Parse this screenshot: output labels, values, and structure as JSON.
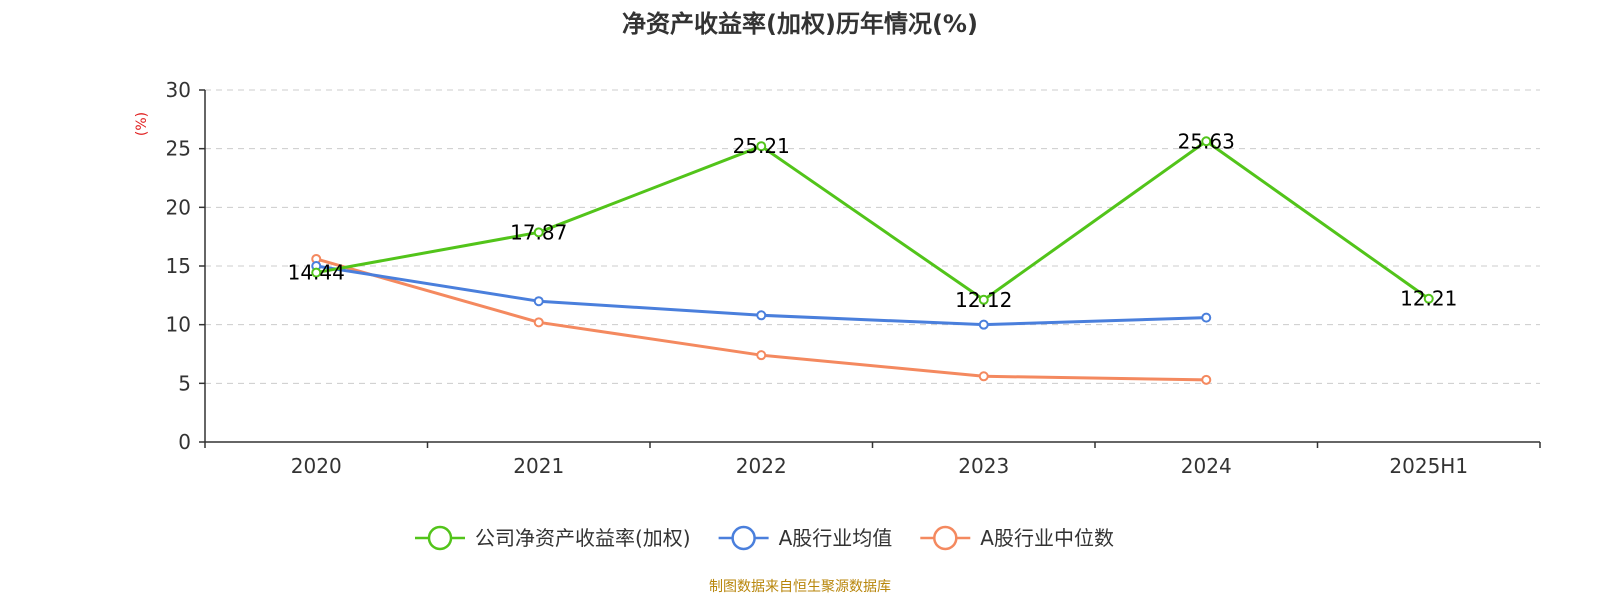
{
  "chart_data": {
    "type": "line",
    "title": "净资产收益率(加权)历年情况(%)",
    "ylabel": "(%)",
    "ylabel_color": "#e02020",
    "categories": [
      "2020",
      "2021",
      "2022",
      "2023",
      "2024",
      "2025H1"
    ],
    "ylim": [
      0,
      30
    ],
    "yticks": [
      0,
      5,
      10,
      15,
      20,
      25,
      30
    ],
    "grid": true,
    "legend_position": "bottom",
    "series": [
      {
        "name": "公司净资产收益率(加权)",
        "color": "#52c41a",
        "values": [
          14.44,
          17.87,
          25.21,
          12.12,
          25.63,
          12.21
        ],
        "labels": [
          "14.44",
          "17.87",
          "25.21",
          "12.12",
          "25.63",
          "12.21"
        ]
      },
      {
        "name": "A股行业均值",
        "color": "#4a7fdc",
        "values": [
          15.0,
          12.0,
          10.8,
          10.0,
          10.6,
          null
        ]
      },
      {
        "name": "A股行业中位数",
        "color": "#f4895f",
        "values": [
          15.6,
          10.2,
          7.4,
          5.6,
          5.3,
          null
        ]
      }
    ]
  },
  "source": {
    "text": "制图数据来自恒生聚源数据库",
    "color": "#b8860b"
  }
}
